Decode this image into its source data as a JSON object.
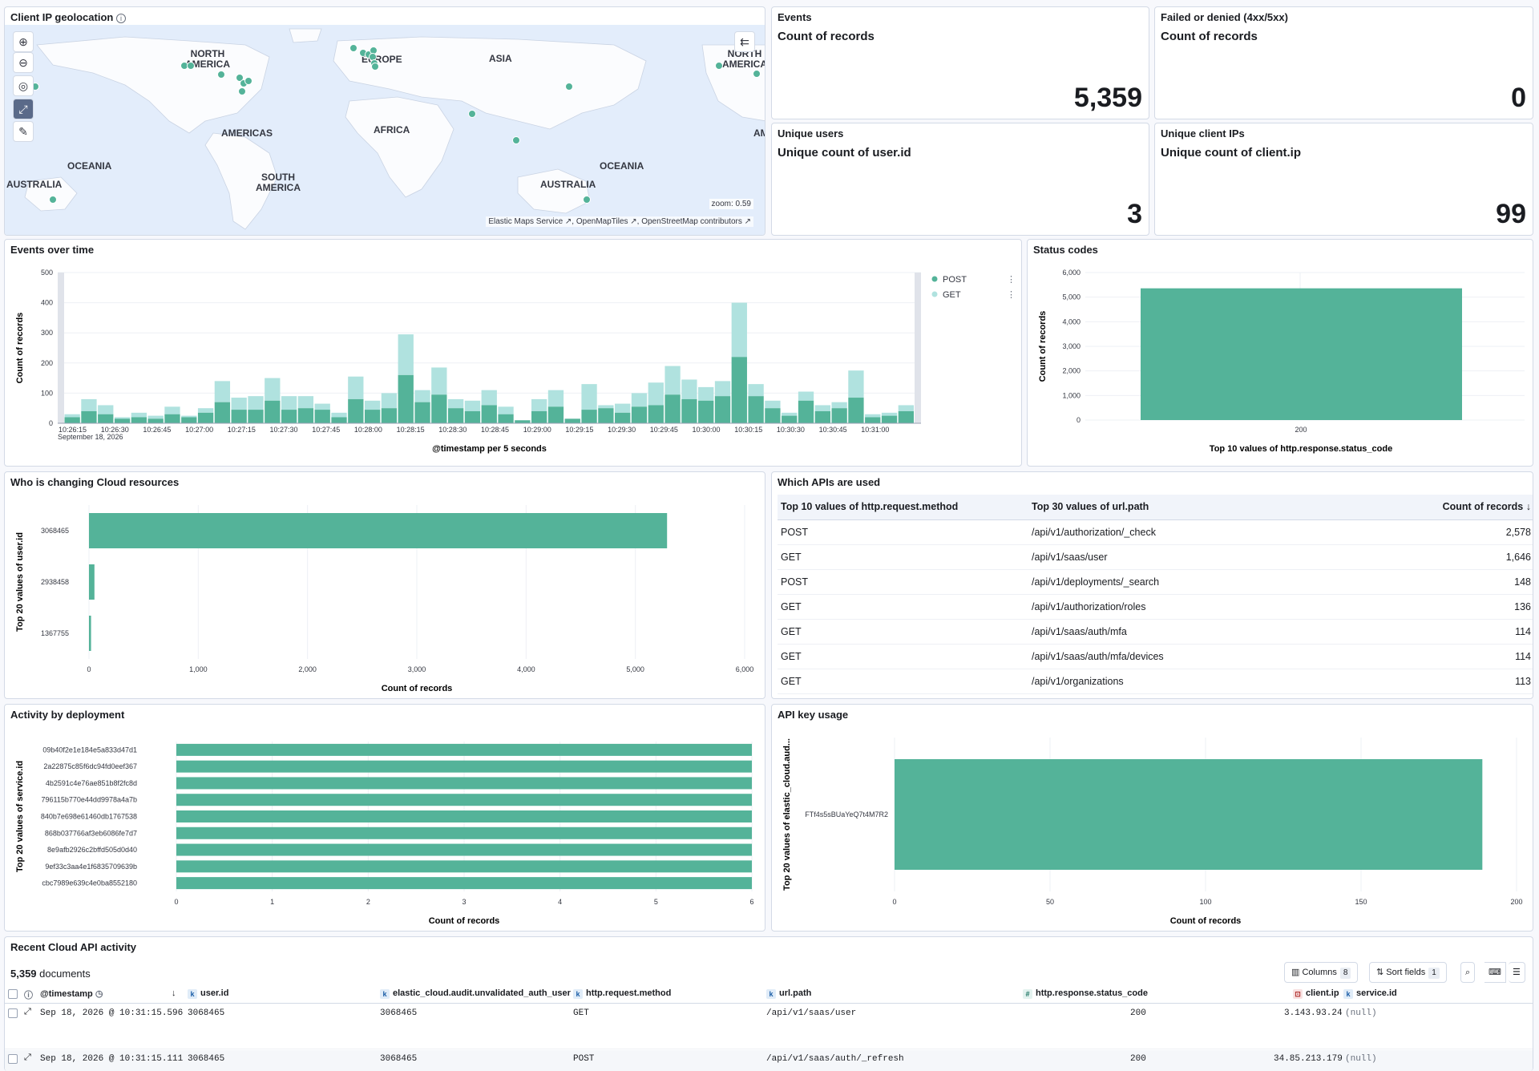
{
  "geo": {
    "title": "Client IP geolocation",
    "continents": [
      {
        "label": "NORTH\nAMERICA",
        "x": 250,
        "y": 70
      },
      {
        "label": "EUROPE",
        "x": 475,
        "y": 77
      },
      {
        "label": "ASIA",
        "x": 617,
        "y": 76
      },
      {
        "label": "NORTH\nAMERICA",
        "x": 917,
        "y": 70
      },
      {
        "label": "AMERICAS",
        "x": 303,
        "y": 169
      },
      {
        "label": "AFRICA",
        "x": 484,
        "y": 165
      },
      {
        "label": "AM",
        "x": 948,
        "y": 169
      },
      {
        "label": "OCEANIA",
        "x": 107,
        "y": 210
      },
      {
        "label": "SOUTH\nAMERICA",
        "x": 338,
        "y": 224
      },
      {
        "label": "OCEANIA",
        "x": 773,
        "y": 210
      },
      {
        "label": "AUSTRALIA",
        "x": 38,
        "y": 233
      },
      {
        "label": "AUSTRALIA",
        "x": 705,
        "y": 233
      }
    ],
    "attribution": "Elastic Maps Service ↗, OpenMapTiles ↗, OpenStreetMap contributors ↗",
    "zoom_label": "zoom: 0.59",
    "accent": "#54b399"
  },
  "metrics": {
    "events": {
      "title": "Events",
      "subtitle": "Count of records",
      "value": "5,359"
    },
    "failed": {
      "title": "Failed or denied (4xx/5xx)",
      "subtitle": "Count of records",
      "value": "0"
    },
    "users": {
      "title": "Unique users",
      "subtitle": "Unique count of user.id",
      "value": "3"
    },
    "ips": {
      "title": "Unique client IPs",
      "subtitle": "Unique count of client.ip",
      "value": "99"
    }
  },
  "events_over_time": {
    "title": "Events over time",
    "ylabel": "Count of records",
    "xlabel": "@timestamp per 5 seconds",
    "date_label": "September 18, 2026",
    "legend": [
      "POST",
      "GET"
    ],
    "chart_data": {
      "type": "bar",
      "stacked": true,
      "ylim": [
        0,
        500
      ],
      "yticks": [
        0,
        100,
        200,
        300,
        400,
        500
      ],
      "xtick_labels": [
        "10:26:15",
        "10:26:30",
        "10:26:45",
        "10:27:00",
        "10:27:15",
        "10:27:30",
        "10:27:45",
        "10:28:00",
        "10:28:15",
        "10:28:30",
        "10:28:45",
        "10:29:00",
        "10:29:15",
        "10:29:30",
        "10:29:45",
        "10:30:00",
        "10:30:15",
        "10:30:30",
        "10:30:45",
        "10:31:00"
      ],
      "series": [
        {
          "name": "POST",
          "color": "#54b399",
          "values": [
            20,
            40,
            30,
            15,
            20,
            15,
            30,
            20,
            35,
            70,
            45,
            45,
            75,
            45,
            50,
            45,
            20,
            80,
            45,
            50,
            160,
            70,
            95,
            50,
            40,
            60,
            30,
            10,
            40,
            55,
            15,
            45,
            50,
            35,
            55,
            60,
            95,
            80,
            75,
            90,
            220,
            90,
            50,
            25,
            75,
            40,
            50,
            85,
            20,
            25,
            40
          ]
        },
        {
          "name": "GET",
          "color": "#b0e2df",
          "values": [
            10,
            40,
            30,
            5,
            15,
            10,
            25,
            5,
            15,
            70,
            40,
            45,
            75,
            45,
            40,
            20,
            15,
            75,
            30,
            50,
            135,
            40,
            90,
            30,
            35,
            50,
            25,
            0,
            40,
            55,
            0,
            85,
            10,
            30,
            45,
            75,
            95,
            65,
            45,
            50,
            180,
            40,
            25,
            10,
            30,
            20,
            20,
            90,
            10,
            10,
            20
          ]
        }
      ]
    }
  },
  "status_codes": {
    "title": "Status codes",
    "ylabel": "Count of records",
    "xlabel": "Top 10 values of http.response.status_code",
    "chart_data": {
      "type": "bar",
      "categories": [
        "200"
      ],
      "values": [
        5359
      ],
      "ylim": [
        0,
        6000
      ],
      "yticks": [
        0,
        1000,
        2000,
        3000,
        4000,
        5000,
        6000
      ],
      "ytick_labels": [
        "0",
        "1,000",
        "2,000",
        "3,000",
        "4,000",
        "5,000",
        "6,000"
      ],
      "color": "#54b399"
    }
  },
  "who_changing": {
    "title": "Who is changing Cloud resources",
    "ylabel": "Top 20 values of user.id",
    "xlabel": "Count of records",
    "chart_data": {
      "type": "bar",
      "orientation": "horizontal",
      "categories": [
        "3068465",
        "2938458",
        "1367755"
      ],
      "values": [
        5290,
        50,
        19
      ],
      "xlim": [
        0,
        6000
      ],
      "xticks": [
        0,
        1000,
        2000,
        3000,
        4000,
        5000,
        6000
      ],
      "xtick_labels": [
        "0",
        "1,000",
        "2,000",
        "3,000",
        "4,000",
        "5,000",
        "6,000"
      ],
      "color": "#54b399"
    }
  },
  "apis": {
    "title": "Which APIs are used",
    "headers": [
      "Top 10 values of http.request.method",
      "Top 30 values of url.path",
      "Count of records"
    ],
    "rows": [
      {
        "method": "POST",
        "path": "/api/v1/authorization/_check",
        "count": "2,578"
      },
      {
        "method": "GET",
        "path": "/api/v1/saas/user",
        "count": "1,646"
      },
      {
        "method": "POST",
        "path": "/api/v1/deployments/_search",
        "count": "148"
      },
      {
        "method": "GET",
        "path": "/api/v1/authorization/roles",
        "count": "136"
      },
      {
        "method": "GET",
        "path": "/api/v1/saas/auth/mfa",
        "count": "114"
      },
      {
        "method": "GET",
        "path": "/api/v1/saas/auth/mfa/devices",
        "count": "114"
      },
      {
        "method": "GET",
        "path": "/api/v1/organizations",
        "count": "113"
      }
    ]
  },
  "deployment": {
    "title": "Activity by deployment",
    "ylabel": "Top 20 values of service.id",
    "xlabel": "Count of records",
    "chart_data": {
      "type": "bar",
      "orientation": "horizontal",
      "categories": [
        "09b40f2e1e184e5a833d47d1",
        "2a22875c85f6dc94fd0eef367",
        "4b2591c4e76ae851b8f2fc8d",
        "796115b770e44dd9978a4a7b",
        "840b7e698e61460db1767538",
        "868b037766af3eb6086fe7d7",
        "8e9afb2926c2bffd505d0d40",
        "9ef33c3aa4e1f6835709639b",
        "cbc7989e639c4e0ba8552180"
      ],
      "values": [
        6,
        6,
        6,
        6,
        6,
        6,
        6,
        6,
        6
      ],
      "xlim": [
        0,
        6
      ],
      "xticks": [
        0,
        1,
        2,
        3,
        4,
        5,
        6
      ],
      "color": "#54b399"
    }
  },
  "apikey": {
    "title": "API key usage",
    "ylabel": "Top 20 values of elastic_cloud.aud...",
    "xlabel": "Count of records",
    "chart_data": {
      "type": "bar",
      "orientation": "horizontal",
      "categories": [
        "FTf4s5sBUaYeQ7t4M7R2"
      ],
      "values": [
        189
      ],
      "xlim": [
        0,
        200
      ],
      "xticks": [
        0,
        50,
        100,
        150,
        200
      ],
      "color": "#54b399"
    }
  },
  "recent": {
    "title": "Recent Cloud API activity",
    "doc_count": "5,359",
    "doc_label": "documents",
    "columns_label": "Columns",
    "columns_count": "8",
    "sort_label": "Sort fields",
    "sort_count": "1",
    "headers": [
      "@timestamp",
      "user.id",
      "elastic_cloud.audit.unvalidated_auth_user",
      "http.request.method",
      "url.path",
      "http.response.status_code",
      "client.ip",
      "service.id"
    ],
    "rows": [
      {
        "timestamp": "Sep 18, 2026 @ 10:31:15.596",
        "user": "3068465",
        "auth_user": "3068465",
        "method": "GET",
        "path": "/api/v1/saas/user",
        "status": "200",
        "ip": "3.143.93.24",
        "service": "(null)"
      },
      {
        "timestamp": "Sep 18, 2026 @ 10:31:15.111",
        "user": "3068465",
        "auth_user": "3068465",
        "method": "POST",
        "path": "/api/v1/saas/auth/_refresh",
        "status": "200",
        "ip": "34.85.213.179",
        "service": "(null)"
      }
    ]
  }
}
